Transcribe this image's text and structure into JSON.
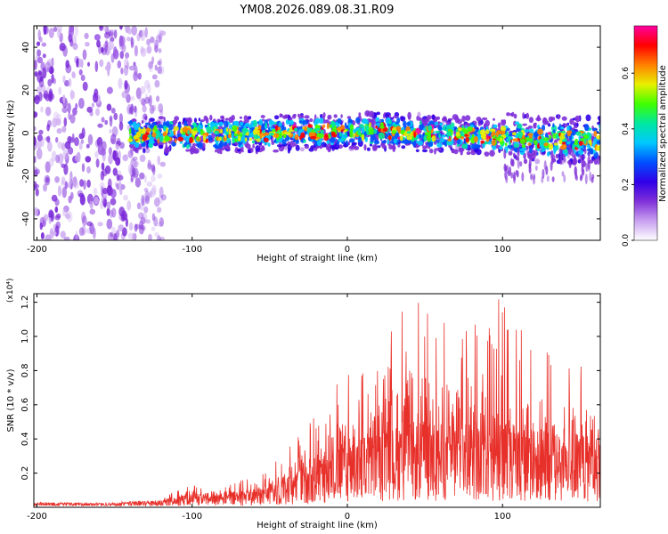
{
  "title": "YM08.2026.089.08.31.R09",
  "chart_data": [
    {
      "type": "heatmap",
      "name": "spectrogram",
      "xlabel": "Height of straight line (km)",
      "ylabel": "Frequency (Hz)",
      "xlim": [
        -202,
        163
      ],
      "ylim": [
        -50,
        50
      ],
      "x_ticks": [
        -200,
        -100,
        0,
        100
      ],
      "x_tick_labels": [
        "-200",
        "-100",
        "0",
        "100"
      ],
      "y_ticks": [
        -40,
        -20,
        0,
        20,
        40
      ],
      "y_tick_labels": [
        "-40",
        "-20",
        "0",
        "20",
        "40"
      ],
      "colorbar": {
        "label": "Normalized spectral amplitude",
        "range": [
          0,
          0.77
        ],
        "ticks": [
          0.0,
          0.2,
          0.4,
          0.6
        ],
        "tick_labels": [
          "0.0",
          "0.2",
          "0.4",
          "0.6"
        ],
        "colormap": [
          "#ffffff",
          "#c8a0f0",
          "#8030d8",
          "#3000e8",
          "#0050ff",
          "#00c8ff",
          "#00e8a0",
          "#40ff00",
          "#e8f000",
          "#ff8000",
          "#ff0000",
          "#ff00a0"
        ]
      },
      "regions": [
        {
          "name": "noise",
          "x_range": [
            -202,
            -118
          ],
          "y_range": [
            -50,
            50
          ],
          "amplitude": 0.1
        },
        {
          "name": "signal-band",
          "x_range": [
            -140,
            163
          ],
          "center_freq": 0,
          "half_width_hz": 6,
          "amplitude_peak": 0.77
        }
      ]
    },
    {
      "type": "line",
      "name": "snr",
      "xlabel": "Height of straight line (km)",
      "ylabel": "SNR (10 * v/v)",
      "scale_label": "(x10⁴)",
      "xlim": [
        -202,
        163
      ],
      "ylim": [
        0,
        1.25
      ],
      "x_ticks": [
        -200,
        -100,
        0,
        100
      ],
      "x_tick_labels": [
        "-200",
        "-100",
        "0",
        "100"
      ],
      "y_ticks": [
        0.2,
        0.4,
        0.6,
        0.8,
        1.0,
        1.2
      ],
      "y_tick_labels": [
        "0.2",
        "0.4",
        "0.6",
        "0.8",
        "1.0",
        "1.2"
      ],
      "color": "#e8302a",
      "envelope": [
        {
          "x": -202,
          "mean": 0.02,
          "peak": 0.03
        },
        {
          "x": -150,
          "mean": 0.02,
          "peak": 0.03
        },
        {
          "x": -120,
          "mean": 0.03,
          "peak": 0.05
        },
        {
          "x": -100,
          "mean": 0.06,
          "peak": 0.15
        },
        {
          "x": -80,
          "mean": 0.06,
          "peak": 0.12
        },
        {
          "x": -60,
          "mean": 0.08,
          "peak": 0.2
        },
        {
          "x": -40,
          "mean": 0.12,
          "peak": 0.35
        },
        {
          "x": -20,
          "mean": 0.2,
          "peak": 0.6
        },
        {
          "x": 0,
          "mean": 0.28,
          "peak": 0.8
        },
        {
          "x": 20,
          "mean": 0.32,
          "peak": 0.9
        },
        {
          "x": 40,
          "mean": 0.36,
          "peak": 1.25
        },
        {
          "x": 60,
          "mean": 0.35,
          "peak": 1.1
        },
        {
          "x": 80,
          "mean": 0.35,
          "peak": 1.2
        },
        {
          "x": 100,
          "mean": 0.35,
          "peak": 1.25
        },
        {
          "x": 120,
          "mean": 0.33,
          "peak": 1.0
        },
        {
          "x": 140,
          "mean": 0.3,
          "peak": 0.9
        },
        {
          "x": 163,
          "mean": 0.3,
          "peak": 0.8
        }
      ]
    }
  ]
}
